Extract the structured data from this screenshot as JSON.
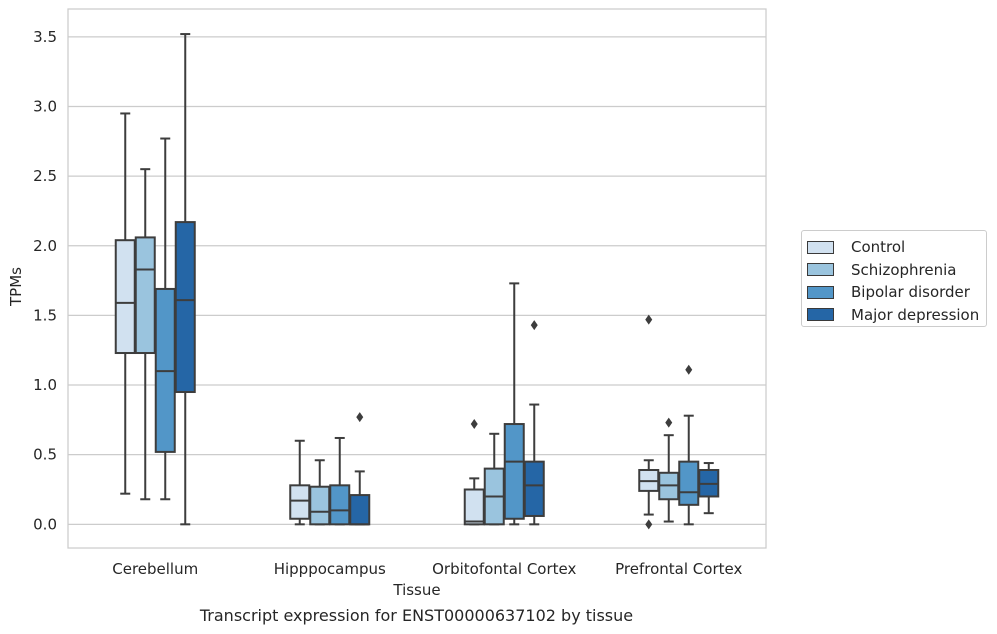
{
  "chart_data": {
    "type": "box",
    "title": "",
    "caption": "Transcript expression for ENST00000637102 by tissue",
    "xlabel": "Tissue",
    "ylabel": "TPMs",
    "ylim": [
      -0.17,
      3.7
    ],
    "yticks": [
      "0.0",
      "0.5",
      "1.0",
      "1.5",
      "2.0",
      "2.5",
      "3.0",
      "3.5"
    ],
    "grid": "horizontal",
    "legend_position": "right",
    "categories": [
      "Cerebellum",
      "Hipppocampus",
      "Orbitofontal Cortex",
      "Prefrontal Cortex"
    ],
    "series": [
      {
        "name": "Control",
        "color": "#d1e1f0",
        "boxes": [
          {
            "whislo": 0.22,
            "q1": 1.23,
            "med": 1.59,
            "q3": 2.04,
            "whishi": 2.95,
            "fliers": []
          },
          {
            "whislo": 0.0,
            "q1": 0.04,
            "med": 0.17,
            "q3": 0.28,
            "whishi": 0.6,
            "fliers": []
          },
          {
            "whislo": 0.0,
            "q1": 0.0,
            "med": 0.02,
            "q3": 0.25,
            "whishi": 0.33,
            "fliers": [
              0.72
            ]
          },
          {
            "whislo": 0.07,
            "q1": 0.24,
            "med": 0.31,
            "q3": 0.39,
            "whishi": 0.46,
            "fliers": [
              1.47,
              0.0
            ]
          }
        ]
      },
      {
        "name": "Schizophrenia",
        "color": "#9ac4de",
        "boxes": [
          {
            "whislo": 0.18,
            "q1": 1.23,
            "med": 1.83,
            "q3": 2.06,
            "whishi": 2.55,
            "fliers": []
          },
          {
            "whislo": 0.0,
            "q1": 0.0,
            "med": 0.09,
            "q3": 0.27,
            "whishi": 0.46,
            "fliers": []
          },
          {
            "whislo": 0.0,
            "q1": 0.0,
            "med": 0.2,
            "q3": 0.4,
            "whishi": 0.65,
            "fliers": []
          },
          {
            "whislo": 0.02,
            "q1": 0.18,
            "med": 0.28,
            "q3": 0.37,
            "whishi": 0.64,
            "fliers": [
              0.73
            ]
          }
        ]
      },
      {
        "name": "Bipolar disorder",
        "color": "#5296c8",
        "boxes": [
          {
            "whislo": 0.18,
            "q1": 0.52,
            "med": 1.1,
            "q3": 1.69,
            "whishi": 2.77,
            "fliers": []
          },
          {
            "whislo": 0.0,
            "q1": 0.0,
            "med": 0.1,
            "q3": 0.28,
            "whishi": 0.62,
            "fliers": []
          },
          {
            "whislo": 0.0,
            "q1": 0.04,
            "med": 0.45,
            "q3": 0.72,
            "whishi": 1.73,
            "fliers": []
          },
          {
            "whislo": 0.0,
            "q1": 0.14,
            "med": 0.23,
            "q3": 0.45,
            "whishi": 0.78,
            "fliers": [
              1.11
            ]
          }
        ]
      },
      {
        "name": "Major depression",
        "color": "#2566a6",
        "boxes": [
          {
            "whislo": 0.0,
            "q1": 0.95,
            "med": 1.61,
            "q3": 2.17,
            "whishi": 3.52,
            "fliers": []
          },
          {
            "whislo": 0.0,
            "q1": 0.0,
            "med": 0.0,
            "q3": 0.21,
            "whishi": 0.38,
            "fliers": [
              0.77
            ]
          },
          {
            "whislo": 0.0,
            "q1": 0.06,
            "med": 0.28,
            "q3": 0.45,
            "whishi": 0.86,
            "fliers": [
              1.43
            ]
          },
          {
            "whislo": 0.08,
            "q1": 0.2,
            "med": 0.29,
            "q3": 0.39,
            "whishi": 0.44,
            "fliers": []
          }
        ]
      }
    ]
  }
}
